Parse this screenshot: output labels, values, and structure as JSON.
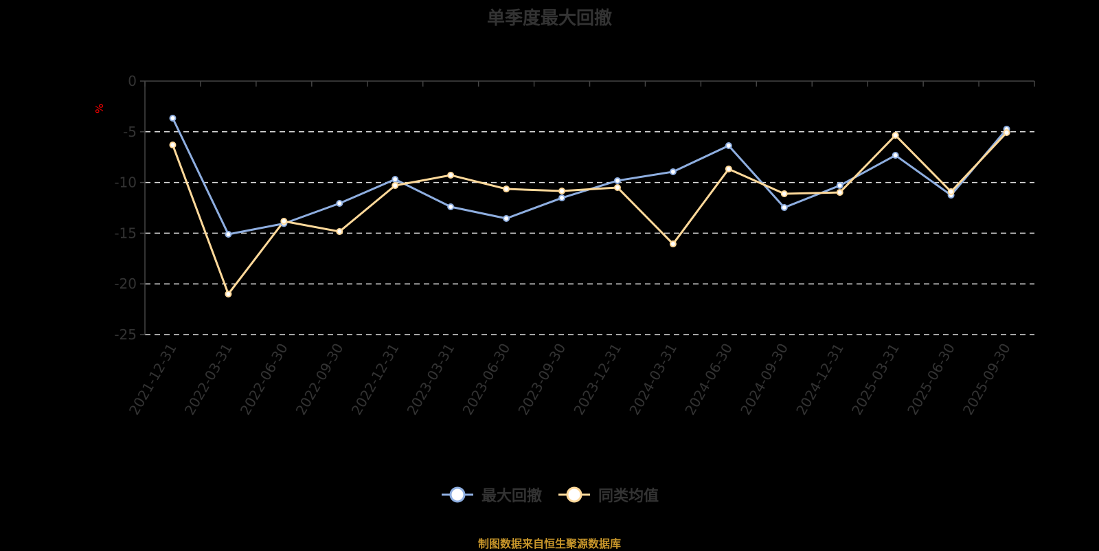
{
  "title": "单季度最大回撤",
  "y_unit": "%",
  "footer": "制图数据来自恒生聚源数据库",
  "colors": {
    "series1": "#8eaee0",
    "series2": "#ffd99a",
    "axis": "#444444",
    "grid": "#dddddd",
    "unit": "#ff0000",
    "footer": "#c8962a"
  },
  "legend": [
    {
      "name": "最大回撤",
      "icon": "circle-line-marker-icon"
    },
    {
      "name": "同类均值",
      "icon": "circle-line-marker-icon"
    }
  ],
  "chart_data": {
    "type": "line",
    "title": "单季度最大回撤",
    "xlabel": "",
    "ylabel": "%",
    "ylim": [
      -25,
      0
    ],
    "yticks": [
      0,
      -5,
      -10,
      -15,
      -20,
      -25
    ],
    "grid": true,
    "legend_position": "bottom",
    "categories": [
      "2021-12-31",
      "2022-03-31",
      "2022-06-30",
      "2022-09-30",
      "2022-12-31",
      "2023-03-31",
      "2023-06-30",
      "2023-09-30",
      "2023-12-31",
      "2024-03-31",
      "2024-06-30",
      "2024-09-30",
      "2024-12-31",
      "2025-03-31",
      "2025-06-30",
      "2025-09-30"
    ],
    "series": [
      {
        "name": "最大回撤",
        "values": [
          -3.66,
          -15.11,
          -14.05,
          -12.06,
          -9.69,
          -12.4,
          -13.55,
          -11.52,
          -9.82,
          -8.94,
          -6.37,
          -12.47,
          -10.3,
          -7.32,
          -11.25,
          -4.74
        ]
      },
      {
        "name": "同类均值",
        "values": [
          -6.3,
          -21.0,
          -13.82,
          -14.84,
          -10.3,
          -9.28,
          -10.64,
          -10.84,
          -10.5,
          -16.06,
          -8.67,
          -11.11,
          -10.98,
          -5.35,
          -10.91,
          -5.08
        ]
      }
    ]
  }
}
